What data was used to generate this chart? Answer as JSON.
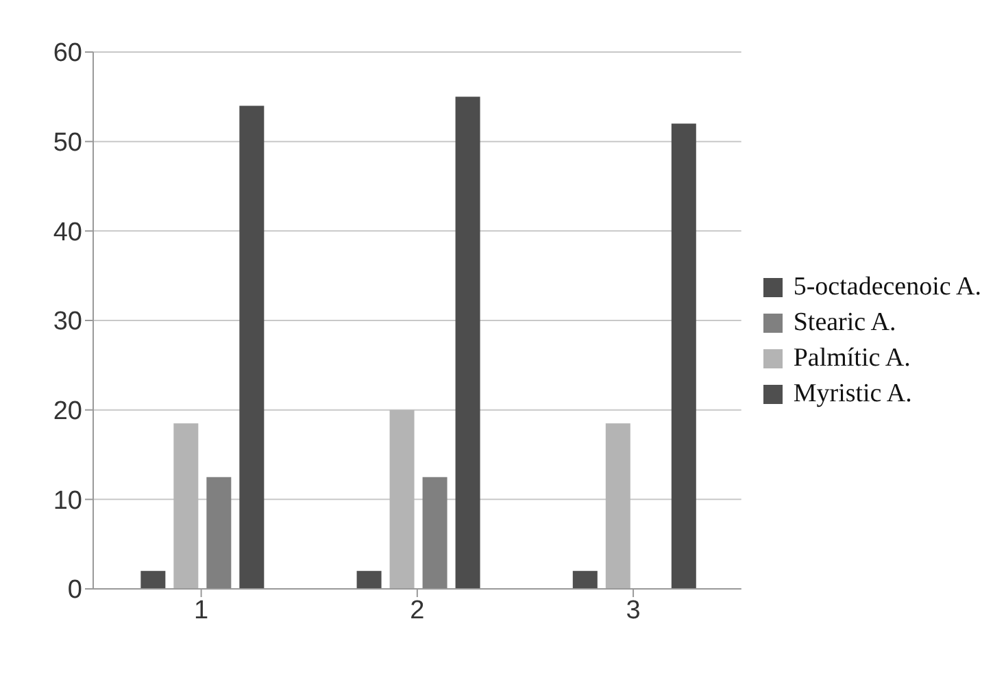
{
  "chart_data": {
    "type": "bar",
    "categories": [
      "1",
      "2",
      "3"
    ],
    "series": [
      {
        "name": "Myristic A.",
        "color": "#4f4f4f",
        "values": [
          2,
          2,
          2
        ]
      },
      {
        "name": "Palmític A.",
        "color": "#b4b4b4",
        "values": [
          18.5,
          20,
          18.5
        ]
      },
      {
        "name": "Stearic A.",
        "color": "#808080",
        "values": [
          12.5,
          12.5,
          null
        ]
      },
      {
        "name": "5-octadecenoic A.",
        "color": "#4d4d4d",
        "values": [
          54,
          55,
          52
        ]
      }
    ],
    "ylim": [
      0,
      60
    ],
    "yticks": [
      0,
      10,
      20,
      30,
      40,
      50,
      60
    ],
    "grid": "y",
    "legend": "right"
  }
}
